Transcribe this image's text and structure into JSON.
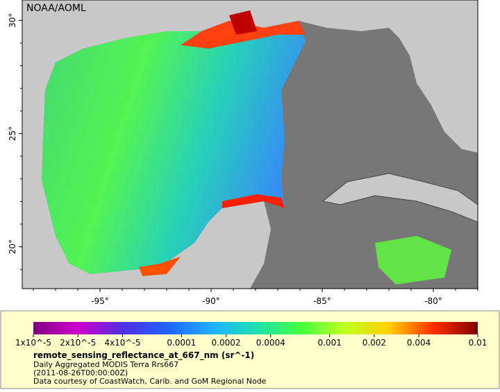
{
  "map": {
    "credit": "NOAA/AOML",
    "xlim": [
      -98.5,
      -78
    ],
    "ylim": [
      18.15,
      30.9
    ],
    "xticks": [
      {
        "value": -95,
        "label": "-95°"
      },
      {
        "value": -90,
        "label": "-90°"
      },
      {
        "value": -85,
        "label": "-85°"
      },
      {
        "value": -80,
        "label": "-80°"
      }
    ],
    "yticks": [
      {
        "value": 20,
        "label": "20°"
      },
      {
        "value": 25,
        "label": "25°"
      },
      {
        "value": 30,
        "label": "30°"
      }
    ]
  },
  "colorbar": {
    "scale": "log",
    "lim": [
      1e-05,
      0.01
    ],
    "ticks": [
      {
        "value": 1e-05,
        "label": "1x10^-5"
      },
      {
        "value": 2e-05,
        "label": "2x10^-5"
      },
      {
        "value": 4e-05,
        "label": "4x10^-5"
      },
      0.0001,
      0.0002,
      0.0004,
      0.001,
      0.002,
      0.004,
      0.01
    ]
  },
  "legend": {
    "title": "remote_sensing_reflectance_at_667_nm (sr^-1)",
    "lines": [
      "Daily Aggregated MODIS Terra Rrs667",
      "(2011-08-26T00:00:00Z)",
      "Data courtesy of CoastWatch, Carib. and GoM Regional Node"
    ]
  }
}
